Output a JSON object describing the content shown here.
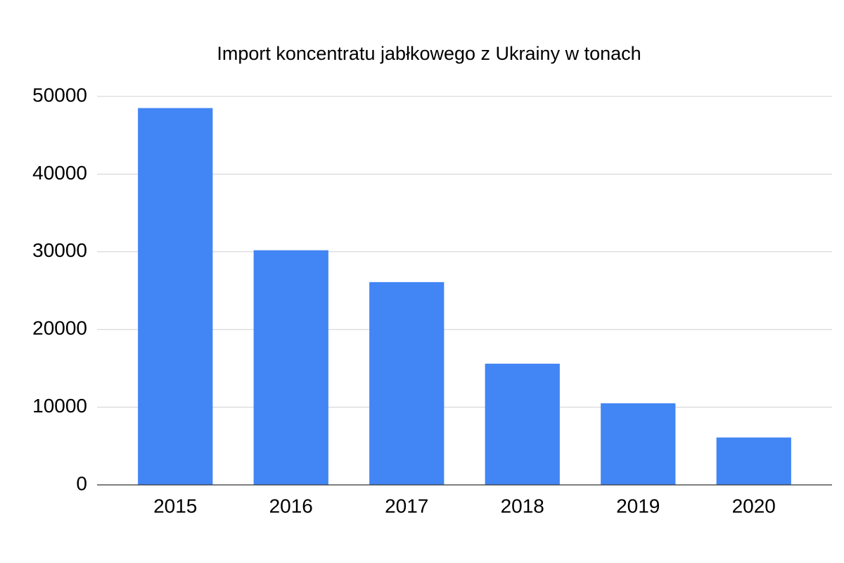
{
  "chart_data": {
    "type": "bar",
    "title": "Import koncentratu jabłkowego z Ukrainy w tonach",
    "categories": [
      "2015",
      "2016",
      "2017",
      "2018",
      "2019",
      "2020"
    ],
    "values": [
      48500,
      30200,
      26100,
      15600,
      10500,
      6100
    ],
    "color": "#4285f4",
    "ylim": [
      0,
      50000
    ],
    "yticks": [
      0,
      10000,
      20000,
      30000,
      40000,
      50000
    ],
    "grid": true
  }
}
